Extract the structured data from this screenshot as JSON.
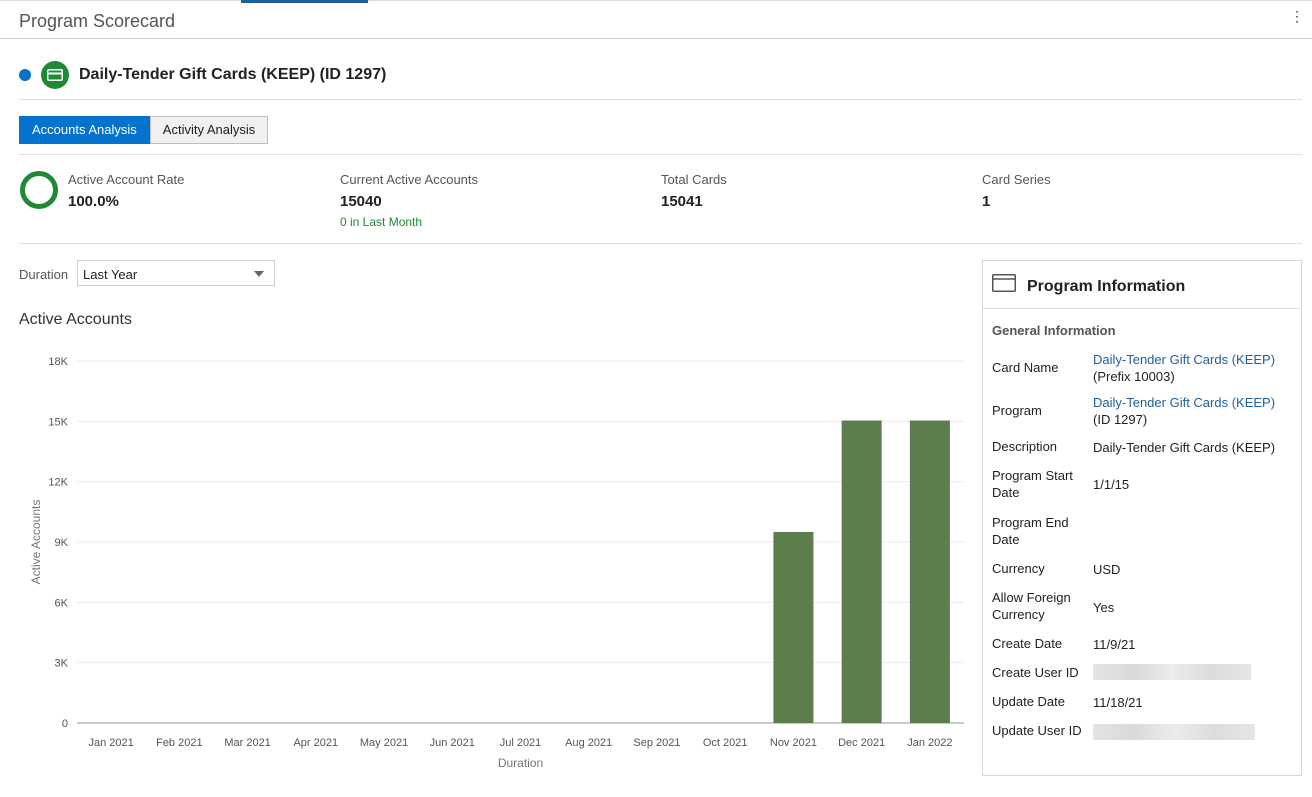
{
  "page": {
    "title": "Program Scorecard",
    "menu_icon": "⋮"
  },
  "program": {
    "name": "Daily-Tender Gift Cards (KEEP) (ID 1297)",
    "status_color": "#0572ce",
    "icon_color": "#1e8a35"
  },
  "tabs": [
    {
      "label": "Accounts Analysis",
      "active": true
    },
    {
      "label": "Activity Analysis",
      "active": false
    }
  ],
  "metrics": {
    "active_rate": {
      "label": "Active Account Rate",
      "value": "100.0%"
    },
    "current_active": {
      "label": "Current Active Accounts",
      "value": "15040",
      "sub": "0 in Last Month"
    },
    "total_cards": {
      "label": "Total Cards",
      "value": "15041"
    },
    "card_series": {
      "label": "Card Series",
      "value": "1"
    }
  },
  "duration": {
    "label": "Duration",
    "value": "Last Year"
  },
  "chart_title": "Active Accounts",
  "chart_data": {
    "type": "bar",
    "title": "Active Accounts",
    "xlabel": "Duration",
    "ylabel": "Active Accounts",
    "categories": [
      "Jan 2021",
      "Feb 2021",
      "Mar 2021",
      "Apr 2021",
      "May 2021",
      "Jun 2021",
      "Jul 2021",
      "Aug 2021",
      "Sep 2021",
      "Oct 2021",
      "Nov 2021",
      "Dec 2021",
      "Jan 2022"
    ],
    "values": [
      0,
      0,
      0,
      0,
      0,
      0,
      0,
      0,
      0,
      0,
      9500,
      15040,
      15040
    ],
    "ylim": [
      0,
      18000
    ],
    "yticks": [
      "0",
      "3K",
      "6K",
      "9K",
      "12K",
      "15K",
      "18K"
    ],
    "bar_color": "#5e7d4c",
    "grid": true
  },
  "info_panel": {
    "title": "Program Information",
    "section": "General Information",
    "rows": [
      {
        "key": "Card Name",
        "link": "Daily-Tender Gift Cards (KEEP)",
        "extra": "(Prefix 10003)"
      },
      {
        "key": "Program",
        "link": "Daily-Tender Gift Cards (KEEP)",
        "extra": "(ID 1297)"
      },
      {
        "key": "Description",
        "value": "Daily-Tender Gift Cards (KEEP)"
      },
      {
        "key": "Program Start Date",
        "value": "1/1/15"
      },
      {
        "key": "Program End Date",
        "value": ""
      },
      {
        "key": "Currency",
        "value": "USD"
      },
      {
        "key": "Allow Foreign Currency",
        "value": "Yes"
      },
      {
        "key": "Create Date",
        "value": "11/9/21"
      },
      {
        "key": "Create User ID",
        "value": ""
      },
      {
        "key": "Update Date",
        "value": "11/18/21"
      },
      {
        "key": "Update User ID",
        "value": ""
      }
    ]
  }
}
